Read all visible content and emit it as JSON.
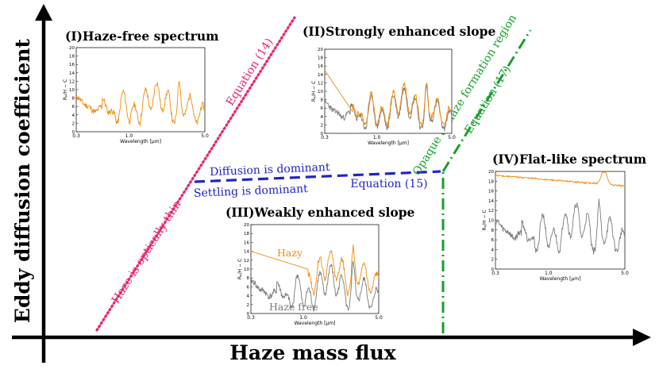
{
  "axes": {
    "x_title": "Haze mass flux",
    "y_title": "Eddy diffusion coefficient"
  },
  "lines": {
    "pink_label": "Haze is optically thin",
    "pink_equation": "Equation (14)",
    "blue_label_above": "Diffusion is dominant",
    "blue_label_below": "Settling is dominant",
    "blue_equation": "Equation (15)",
    "green_label": "Opaque at haze formation region",
    "green_equation": "Equation (17)"
  },
  "colors": {
    "pink": "#e8256f",
    "blue": "#1f24c8",
    "green": "#16a02a",
    "hazy": "#f08a0c",
    "haze_free": "#7a7a7a"
  },
  "panels": {
    "p1": {
      "title": "(I)Haze-free spectrum",
      "xlabel": "Wavelength [μm]",
      "ylabel": "Rₚ/H − C"
    },
    "p2": {
      "title": "(II)Strongly enhanced slope",
      "xlabel": "Wavelength [μm]",
      "ylabel": "Rₚ/H − C"
    },
    "p3": {
      "title": "(III)Weakly enhanced slope",
      "xlabel": "Wavelength [μm]",
      "ylabel": "Rₚ/H − C",
      "hazy_label": "Hazy",
      "haze_free_label": "Haze free"
    },
    "p4": {
      "title": "(IV)Flat-like spectrum",
      "xlabel": "Wavelength [μm]",
      "ylabel": "Rₚ/H − C"
    }
  },
  "inset_axis": {
    "yticks": [
      "0",
      "2",
      "4",
      "6",
      "8",
      "10",
      "12",
      "14",
      "16",
      "18",
      "20"
    ],
    "xticks": [
      "0.3",
      "1.0",
      "5.0"
    ]
  }
}
